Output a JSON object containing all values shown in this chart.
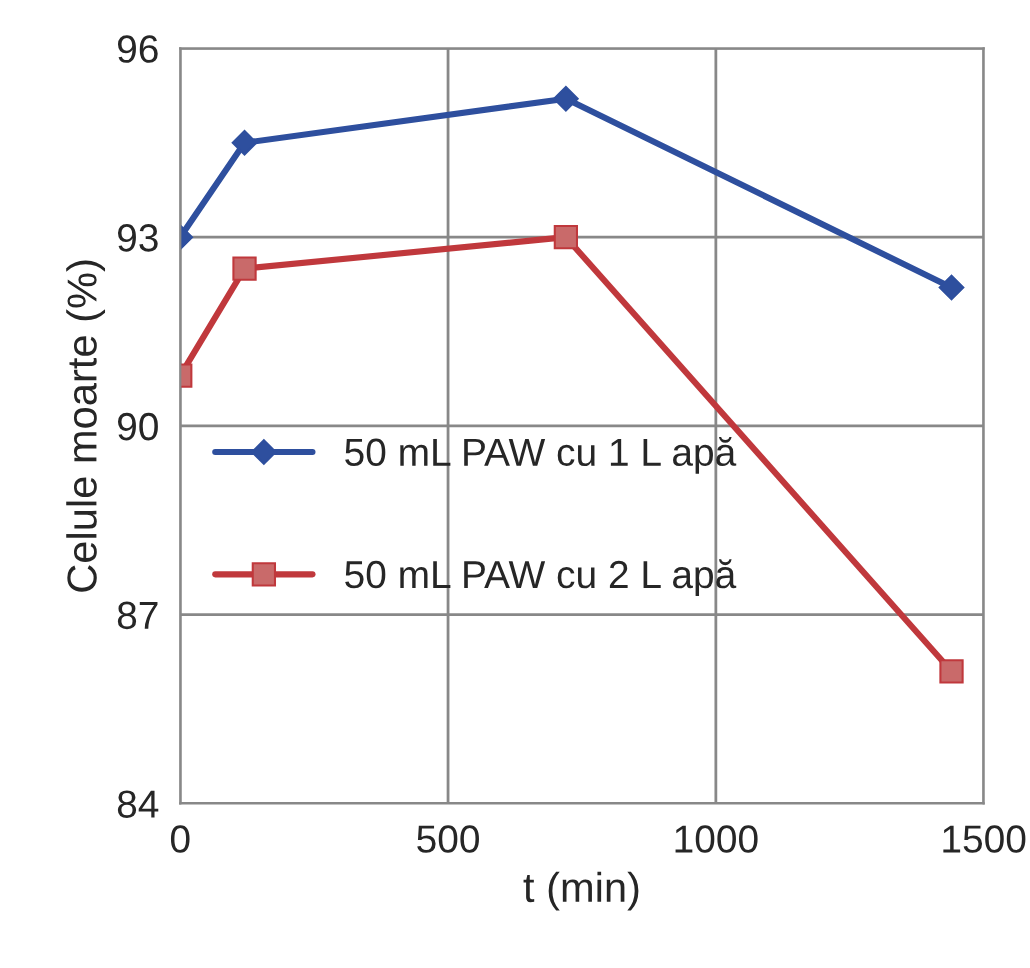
{
  "chart_data": {
    "type": "line",
    "xlabel": "t (min)",
    "ylabel": "Celule moarte (%)",
    "x": [
      0,
      120,
      720,
      1440
    ],
    "series": [
      {
        "name": "50 mL PAW cu 1 L apă",
        "color": "#2e4f9e",
        "marker": "diamond",
        "values": [
          93.0,
          94.5,
          95.2,
          92.2
        ]
      },
      {
        "name": "50 mL PAW cu 2 L apă",
        "color": "#c0383c",
        "marker": "square",
        "values": [
          90.8,
          92.5,
          93.0,
          86.1
        ]
      }
    ],
    "xlim": [
      0,
      1500
    ],
    "xticks": [
      0,
      500,
      1000,
      1500
    ],
    "ylim": [
      84,
      96
    ],
    "yticks": [
      84,
      87,
      90,
      93,
      96
    ],
    "grid": true,
    "legend": "center left",
    "line_style": "solid"
  }
}
